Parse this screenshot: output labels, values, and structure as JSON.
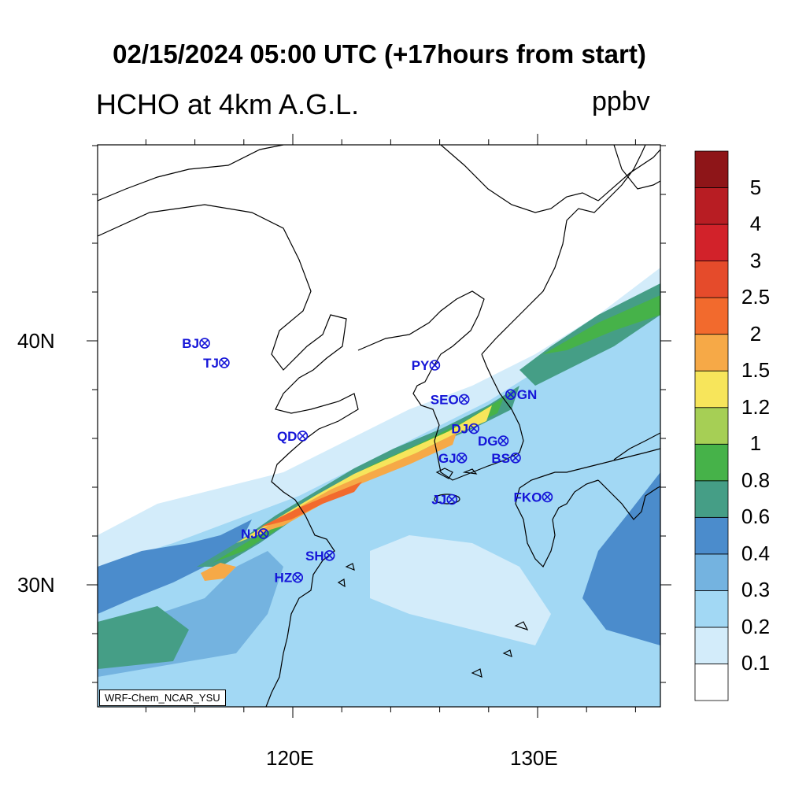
{
  "header": {
    "title": "02/15/2024 05:00 UTC (+17hours from start)",
    "subtitle": "HCHO at 4km A.G.L.",
    "units": "ppbv"
  },
  "axes": {
    "lat_labels": [
      "40N",
      "30N"
    ],
    "lon_labels": [
      "120E",
      "130E"
    ]
  },
  "colorbar": {
    "levels": [
      "0.1",
      "0.2",
      "0.3",
      "0.4",
      "0.6",
      "0.8",
      "1",
      "1.2",
      "1.5",
      "2",
      "2.5",
      "3",
      "4",
      "5"
    ],
    "colors": [
      "#ffffff",
      "#d3ecfa",
      "#a2d8f4",
      "#74b3e0",
      "#4b8ccc",
      "#459e86",
      "#46b249",
      "#a6cf55",
      "#f7e55b",
      "#f6a947",
      "#f26a2d",
      "#e54b2b",
      "#d2222a",
      "#b81d23",
      "#8e1518"
    ]
  },
  "stations": [
    {
      "name": "BJ",
      "lon": 116.4,
      "lat": 39.9
    },
    {
      "name": "TJ",
      "lon": 117.2,
      "lat": 39.1
    },
    {
      "name": "PY",
      "lon": 125.8,
      "lat": 39.0
    },
    {
      "name": "SEO",
      "lon": 127.0,
      "lat": 37.6
    },
    {
      "name": "GN",
      "lon": 128.9,
      "lat": 37.8
    },
    {
      "name": "QD",
      "lon": 120.4,
      "lat": 36.1
    },
    {
      "name": "DJ",
      "lon": 127.4,
      "lat": 36.4
    },
    {
      "name": "DG",
      "lon": 128.6,
      "lat": 35.9
    },
    {
      "name": "GJ",
      "lon": 126.9,
      "lat": 35.2
    },
    {
      "name": "BS",
      "lon": 129.1,
      "lat": 35.2
    },
    {
      "name": "JJ",
      "lon": 126.5,
      "lat": 33.5
    },
    {
      "name": "FKO",
      "lon": 130.4,
      "lat": 33.6
    },
    {
      "name": "NJ",
      "lon": 118.8,
      "lat": 32.1
    },
    {
      "name": "SH",
      "lon": 121.5,
      "lat": 31.2
    },
    {
      "name": "HZ",
      "lon": 120.2,
      "lat": 30.3
    }
  ],
  "credit": "WRF-Chem_NCAR_YSU"
}
